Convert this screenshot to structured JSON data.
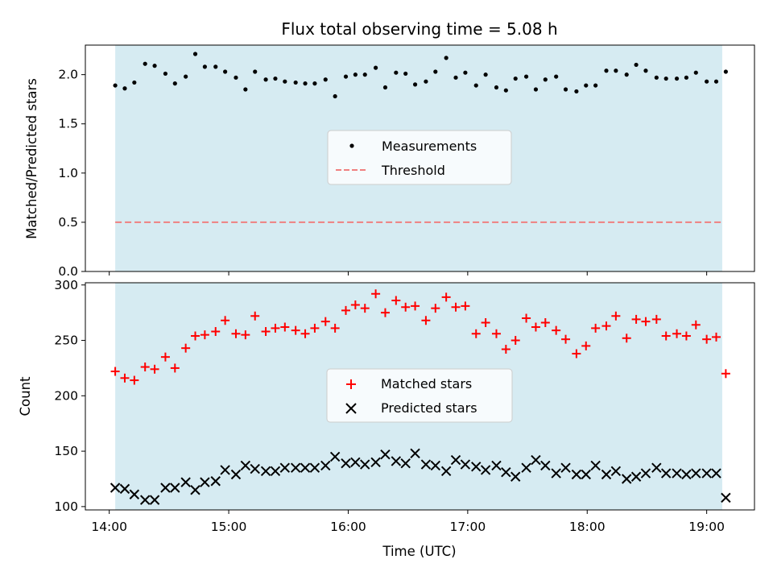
{
  "colors": {
    "background": "#ffffff",
    "observing_band": "#add8e6",
    "measurement_color": "#000000",
    "threshold_color": "#f08080",
    "matched_color": "#ff0000",
    "predicted_color": "#000000"
  },
  "chart_data": [
    {
      "type": "scatter",
      "title": "Flux total observing time = 5.08 h",
      "ylabel": "Matched/Predicted stars",
      "ylim": [
        0.0,
        2.3
      ],
      "yticks": [
        "0.0",
        "0.5",
        "1.0",
        "1.5",
        "2.0"
      ],
      "xlim_hours": [
        13.8,
        19.4
      ],
      "observing_window_hours": [
        14.05,
        19.13
      ],
      "legend_position": "center",
      "series": [
        {
          "name": "Measurements",
          "marker": "dot",
          "x_hours": [
            14.05,
            14.13,
            14.21,
            14.3,
            14.38,
            14.47,
            14.55,
            14.64,
            14.72,
            14.8,
            14.89,
            14.97,
            15.06,
            15.14,
            15.22,
            15.31,
            15.39,
            15.47,
            15.56,
            15.64,
            15.72,
            15.81,
            15.89,
            15.98,
            16.06,
            16.14,
            16.23,
            16.31,
            16.4,
            16.48,
            16.56,
            16.65,
            16.73,
            16.82,
            16.9,
            16.98,
            17.07,
            17.15,
            17.24,
            17.32,
            17.4,
            17.49,
            17.57,
            17.65,
            17.74,
            17.82,
            17.91,
            17.99,
            18.07,
            18.16,
            18.24,
            18.33,
            18.41,
            18.49,
            18.58,
            18.66,
            18.75,
            18.83,
            18.91,
            19.0,
            19.08,
            19.16
          ],
          "y": [
            1.89,
            1.86,
            1.92,
            2.11,
            2.09,
            2.01,
            1.91,
            1.98,
            2.21,
            2.08,
            2.08,
            2.03,
            1.97,
            1.85,
            2.03,
            1.95,
            1.96,
            1.93,
            1.92,
            1.91,
            1.91,
            1.95,
            1.78,
            1.98,
            2.0,
            2.0,
            2.07,
            1.87,
            2.02,
            2.01,
            1.9,
            1.93,
            2.03,
            2.17,
            1.97,
            2.02,
            1.89,
            2.0,
            1.87,
            1.84,
            1.96,
            1.98,
            1.85,
            1.95,
            1.98,
            1.85,
            1.83,
            1.89,
            1.89,
            2.04,
            2.04,
            2.0,
            2.1,
            2.04,
            1.97,
            1.96,
            1.96,
            1.97,
            2.02,
            1.93,
            1.93,
            2.03
          ]
        },
        {
          "name": "Threshold",
          "style": "dashed",
          "y": 0.5
        }
      ]
    },
    {
      "type": "scatter",
      "xlabel": "Time (UTC)",
      "ylabel": "Count",
      "ylim": [
        97,
        302
      ],
      "yticks": [
        "100",
        "150",
        "200",
        "250",
        "300"
      ],
      "xlim_hours": [
        13.8,
        19.4
      ],
      "xticks": [
        "14:00",
        "15:00",
        "16:00",
        "17:00",
        "18:00",
        "19:00"
      ],
      "observing_window_hours": [
        14.05,
        19.13
      ],
      "legend_position": "center",
      "series": [
        {
          "name": "Matched stars",
          "marker": "plus",
          "x_hours": [
            14.05,
            14.13,
            14.21,
            14.3,
            14.38,
            14.47,
            14.55,
            14.64,
            14.72,
            14.8,
            14.89,
            14.97,
            15.06,
            15.14,
            15.22,
            15.31,
            15.39,
            15.47,
            15.56,
            15.64,
            15.72,
            15.81,
            15.89,
            15.98,
            16.06,
            16.14,
            16.23,
            16.31,
            16.4,
            16.48,
            16.56,
            16.65,
            16.73,
            16.82,
            16.9,
            16.98,
            17.07,
            17.15,
            17.24,
            17.32,
            17.4,
            17.49,
            17.57,
            17.65,
            17.74,
            17.82,
            17.91,
            17.99,
            18.07,
            18.16,
            18.24,
            18.33,
            18.41,
            18.49,
            18.58,
            18.66,
            18.75,
            18.83,
            18.91,
            19.0,
            19.08,
            19.16
          ],
          "y": [
            222,
            216,
            214,
            226,
            224,
            235,
            225,
            243,
            254,
            255,
            258,
            268,
            256,
            255,
            272,
            258,
            261,
            262,
            259,
            256,
            261,
            267,
            261,
            277,
            282,
            279,
            292,
            275,
            286,
            280,
            281,
            268,
            279,
            289,
            280,
            281,
            256,
            266,
            256,
            242,
            250,
            270,
            262,
            266,
            259,
            251,
            238,
            245,
            261,
            263,
            272,
            252,
            269,
            267,
            269,
            254,
            256,
            254,
            264,
            251,
            253,
            220
          ]
        },
        {
          "name": "Predicted stars",
          "marker": "x",
          "x_hours": [
            14.05,
            14.13,
            14.21,
            14.3,
            14.38,
            14.47,
            14.55,
            14.64,
            14.72,
            14.8,
            14.89,
            14.97,
            15.06,
            15.14,
            15.22,
            15.31,
            15.39,
            15.47,
            15.56,
            15.64,
            15.72,
            15.81,
            15.89,
            15.98,
            16.06,
            16.14,
            16.23,
            16.31,
            16.4,
            16.48,
            16.56,
            16.65,
            16.73,
            16.82,
            16.9,
            16.98,
            17.07,
            17.15,
            17.24,
            17.32,
            17.4,
            17.49,
            17.57,
            17.65,
            17.74,
            17.82,
            17.91,
            17.99,
            18.07,
            18.16,
            18.24,
            18.33,
            18.41,
            18.49,
            18.58,
            18.66,
            18.75,
            18.83,
            18.91,
            19.0,
            19.08,
            19.16
          ],
          "y": [
            117,
            116,
            111,
            106,
            106,
            117,
            117,
            122,
            115,
            122,
            123,
            133,
            129,
            137,
            134,
            132,
            132,
            135,
            135,
            135,
            135,
            137,
            145,
            139,
            140,
            138,
            140,
            147,
            141,
            139,
            148,
            138,
            137,
            132,
            142,
            138,
            136,
            133,
            137,
            131,
            127,
            135,
            142,
            137,
            130,
            135,
            129,
            129,
            137,
            129,
            132,
            125,
            127,
            130,
            135,
            130,
            130,
            129,
            130,
            130,
            130,
            108
          ]
        }
      ]
    }
  ]
}
